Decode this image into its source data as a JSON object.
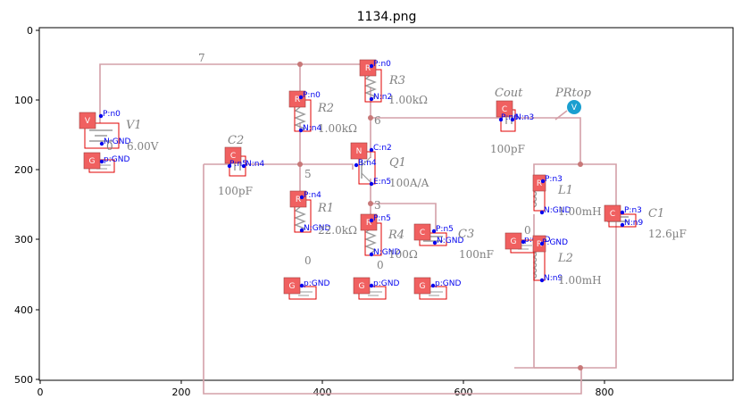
{
  "figure": {
    "title": "1134.png",
    "x_ticks": [
      "0",
      "200",
      "400",
      "600",
      "800"
    ],
    "y_ticks": [
      "0",
      "100",
      "200",
      "300",
      "400",
      "500"
    ]
  },
  "schematic": {
    "colors": {
      "wire": "#d4a0a8",
      "node": "#c87878",
      "box": "#e00000",
      "badge": "#f06060",
      "pin": "#0000ee",
      "probe": "#1a9fd0"
    },
    "node_labels": {
      "n7": "7",
      "n6": "6",
      "n5": "5",
      "n3": "3",
      "n0": "0",
      "n0b": "0"
    },
    "components": {
      "V1": {
        "name": "V1",
        "value": "6.00V",
        "badge": "V",
        "pin_pos": "P:n0",
        "pin_neg": "N:GND"
      },
      "R2": {
        "name": "R2",
        "value": "1.00kΩ",
        "badge": "R",
        "pin_pos": "P:n0",
        "pin_neg": "N:n4"
      },
      "R3": {
        "name": "R3",
        "value": "1.00kΩ",
        "badge": "R",
        "pin_pos": "P:n0",
        "pin_neg": "N:n2"
      },
      "C2": {
        "name": "C2",
        "value": "100pF",
        "badge": "C",
        "pin_pos": "P:n5",
        "pin_neg": "N:n4"
      },
      "Q1": {
        "name": "Q1",
        "value": "100A/A",
        "badge": "N",
        "pin_c": "C:n2",
        "pin_b": "B:n4",
        "pin_e": "E:n5"
      },
      "Cout": {
        "name": "Cout",
        "value": "100pF",
        "badge": "C",
        "pin_pos": "P:n6",
        "pin_neg": "N:n3"
      },
      "PRtop": {
        "name": "PRtop",
        "badge": "V"
      },
      "R1": {
        "name": "R1",
        "value": "22.0kΩ",
        "badge": "R",
        "pin_pos": "P:n4",
        "pin_neg": "N:GND"
      },
      "R4": {
        "name": "R4",
        "value": "100Ω",
        "badge": "R",
        "pin_pos": "P:n5",
        "pin_neg": "N:GND"
      },
      "C3": {
        "name": "C3",
        "value": "100nF",
        "badge": "C",
        "pin_pos": "P:n5",
        "pin_neg": "N:GND"
      },
      "L1": {
        "name": "L1",
        "value": "1.00mH",
        "badge": "R",
        "pin_pos": "P:n3",
        "pin_neg": "N:GND"
      },
      "L2": {
        "name": "L2",
        "value": "1.00mH",
        "badge": "R",
        "pin_pos": "P:GND",
        "pin_neg": "N:n9"
      },
      "C1": {
        "name": "C1",
        "value": "12.6µF",
        "badge": "C",
        "pin_pos": "P:n3",
        "pin_neg": "N:n9"
      }
    },
    "grounds": [
      {
        "badge": "G",
        "pin": "p:GND"
      },
      {
        "badge": "G",
        "pin": "p:GND"
      },
      {
        "badge": "G",
        "pin": "p:GND"
      },
      {
        "badge": "G",
        "pin": "p:GND"
      },
      {
        "badge": "G",
        "pin": "p:GND"
      }
    ]
  }
}
